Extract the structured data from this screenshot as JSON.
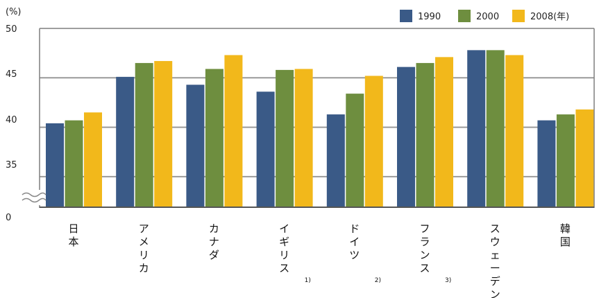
{
  "chart_data": {
    "type": "bar",
    "unit_label": "(%)",
    "categories": [
      "日本",
      "アメリカ",
      "カナダ",
      "イギリス",
      "ドイツ",
      "フランス",
      "スウェーデン",
      "韓国"
    ],
    "category_notes": [
      "",
      "",
      "",
      "1)",
      "2)",
      "3)",
      "",
      ""
    ],
    "series": [
      {
        "name": "1990",
        "color": "#3a5a87",
        "values": [
          40.4,
          45.1,
          44.3,
          43.6,
          41.3,
          46.1,
          47.8,
          40.7
        ]
      },
      {
        "name": "2000",
        "color": "#6e8e3f",
        "values": [
          40.7,
          46.5,
          45.9,
          45.8,
          43.4,
          46.5,
          47.8,
          41.3
        ]
      },
      {
        "name": "2008(年)",
        "color": "#f2b81b",
        "values": [
          41.5,
          46.7,
          47.3,
          45.9,
          45.2,
          47.1,
          47.3,
          41.8
        ]
      }
    ],
    "y_ticks": [
      "50",
      "45",
      "40",
      "35",
      "0"
    ],
    "axis_break": true,
    "grid": true,
    "legend_position": "top-right"
  }
}
